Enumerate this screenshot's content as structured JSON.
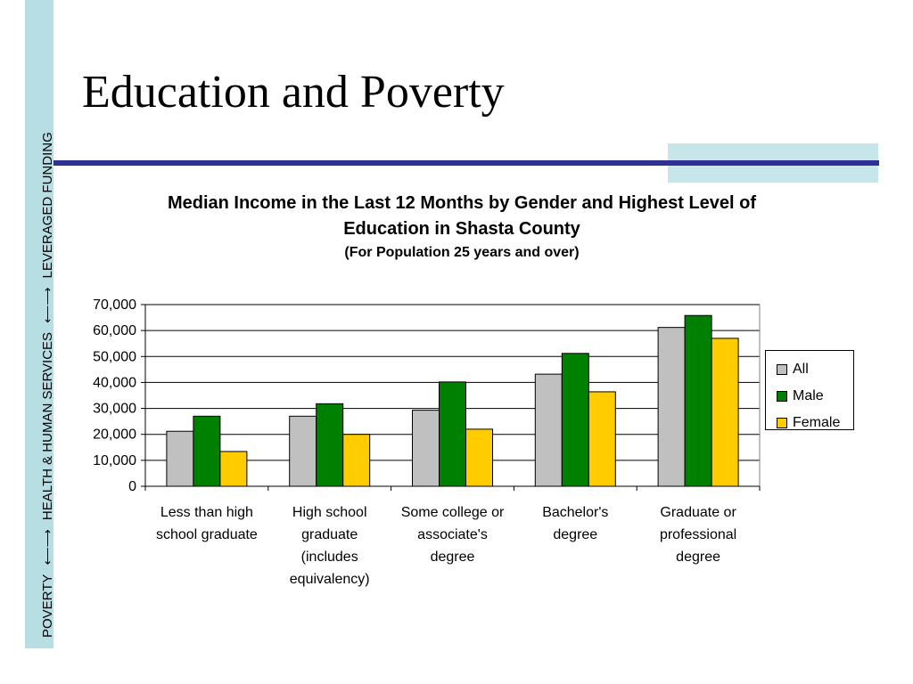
{
  "side_label": {
    "poverty": "POVERTY",
    "health": "HEALTH & HUMAN SERVICES",
    "funding": "LEVERAGED FUNDING"
  },
  "slide": {
    "title": "Education and Poverty"
  },
  "colors": {
    "band": "#b7dfe3",
    "rule": "#2e3192",
    "accent": "#c7e6ea",
    "all": "#c0c0c0",
    "male": "#008000",
    "female": "#ffcc00"
  },
  "chart_data": {
    "type": "bar",
    "title": "Median Income in the Last 12 Months by Gender and Highest Level of Education in Shasta County",
    "subtitle": "(For Population 25 years and over)",
    "categories": [
      "Less than high school graduate",
      "High school graduate (includes equivalency)",
      "Some college or associate's degree",
      "Bachelor's degree",
      "Graduate or professional degree"
    ],
    "series": [
      {
        "name": "All",
        "values": [
          21200,
          27000,
          29300,
          43200,
          61200
        ]
      },
      {
        "name": "Male",
        "values": [
          27000,
          31800,
          40200,
          51200,
          65800
        ]
      },
      {
        "name": "Female",
        "values": [
          13400,
          20000,
          22000,
          36400,
          57000
        ]
      }
    ],
    "ylim": [
      0,
      70000
    ],
    "yticks": [
      "0",
      "10,000",
      "20,000",
      "30,000",
      "40,000",
      "50,000",
      "60,000",
      "70,000"
    ],
    "xlabel": "",
    "ylabel": "",
    "grid": true,
    "legend": "right"
  }
}
